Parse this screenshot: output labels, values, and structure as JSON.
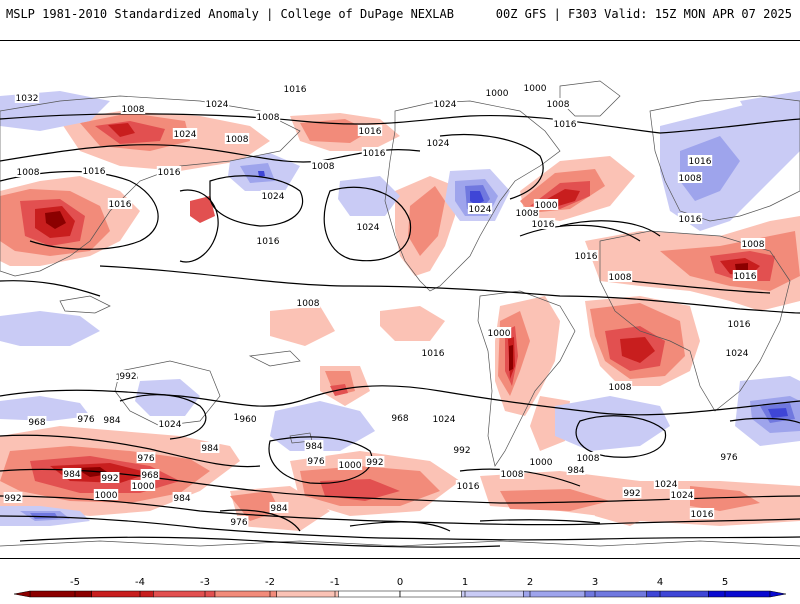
{
  "header": {
    "title_left": "MSLP 1981-2010 Standardized Anomaly | College of DuPage NEXLAB",
    "title_right": "00Z GFS | F303 Valid: 15Z MON APR 07 2025"
  },
  "colors": {
    "neg5": "#8b0000",
    "neg4": "#c81e1e",
    "neg3": "#e25050",
    "neg2": "#f28b7a",
    "neg1": "#fbc2b5",
    "pos1": "#c9cbf5",
    "pos2": "#9ea4ec",
    "pos3": "#7078df",
    "pos4": "#3f46d6",
    "pos5": "#0a0ad0",
    "contour": "#000000",
    "coast": "#555555"
  },
  "colorbar": {
    "ticks": [
      "-5",
      "-4",
      "-3",
      "-2",
      "-1",
      "0",
      "1",
      "2",
      "3",
      "4",
      "5"
    ]
  },
  "contour_labels": [
    "1032",
    "1008",
    "1024",
    "1016",
    "1000",
    "1008",
    "1024",
    "1000",
    "1008",
    "1016",
    "1024",
    "1008",
    "1016",
    "1024",
    "1016",
    "1008",
    "1024",
    "1008",
    "1016",
    "1016",
    "1016",
    "1016",
    "1008",
    "1016",
    "1024",
    "1024",
    "1016",
    "1008",
    "1000",
    "1016",
    "1008",
    "1016",
    "1008",
    "1016",
    "1016",
    "1024",
    "1008",
    "1000",
    "1016",
    "1024",
    "1024",
    "1008",
    "1000",
    "1016",
    "992",
    "984",
    "976",
    "968",
    "960",
    "968",
    "984",
    "976",
    "992",
    "1000",
    "1008",
    "992",
    "984",
    "976",
    "968",
    "984",
    "992",
    "1000",
    "984",
    "1000",
    "992",
    "976",
    "984",
    "1000",
    "1016",
    "1008",
    "984",
    "976",
    "992",
    "1024",
    "1024",
    "1016"
  ]
}
